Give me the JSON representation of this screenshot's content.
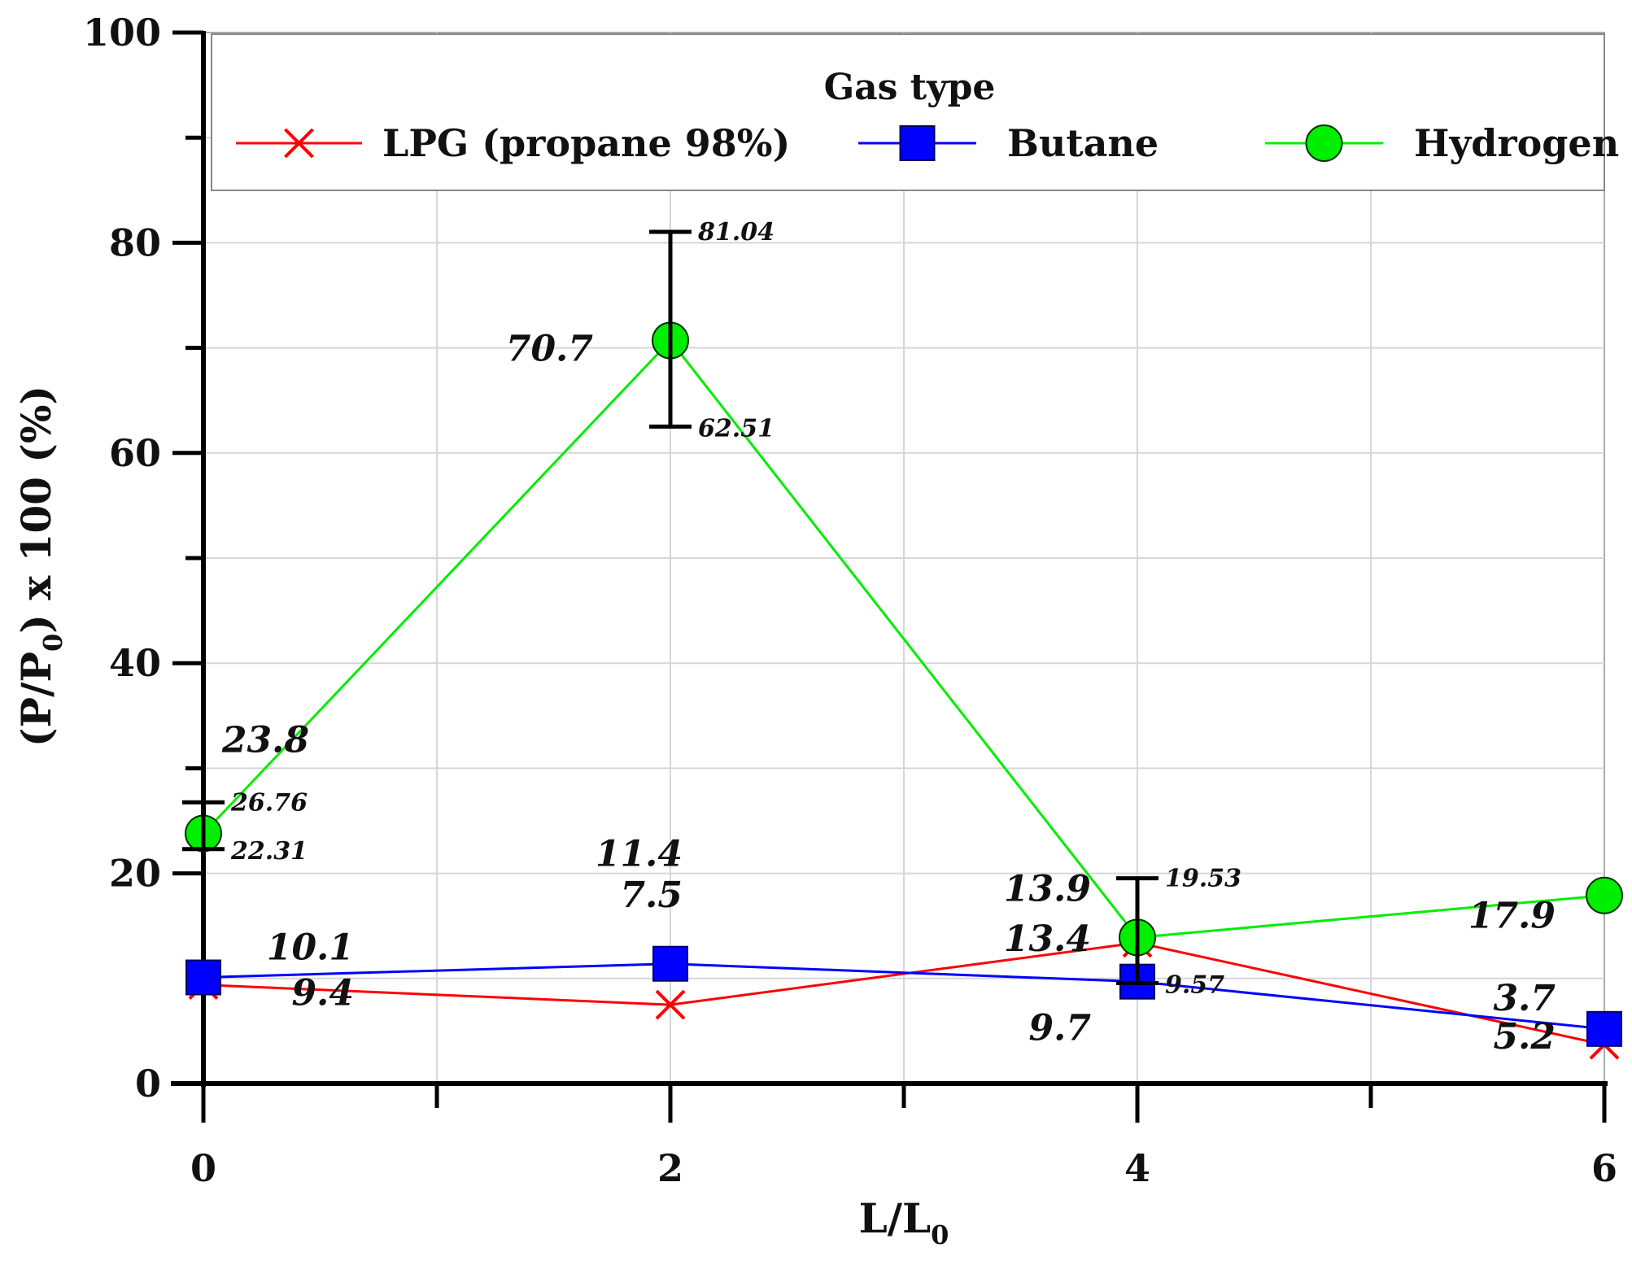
{
  "chart_data": {
    "type": "line",
    "title": "",
    "xlabel": "L/L",
    "xlabel_sub": "0",
    "ylabel": "(P/P",
    "ylabel_sub": "0",
    "ylabel_tail": ") x 100 (%)",
    "xlim": [
      0,
      6
    ],
    "ylim": [
      0,
      100
    ],
    "x_ticks": [
      0,
      2,
      4,
      6
    ],
    "y_ticks": [
      0,
      20,
      40,
      60,
      80,
      100
    ],
    "grid": true,
    "legend": {
      "title": "Gas type",
      "position": "top"
    },
    "series": [
      {
        "name": "LPG (propane 98%)",
        "color": "#ff0000",
        "marker": "x",
        "x": [
          0,
          2,
          4,
          6
        ],
        "values": [
          9.4,
          7.5,
          13.4,
          3.7
        ],
        "labels": [
          "9.4",
          "7.5",
          "13.4",
          "3.7"
        ]
      },
      {
        "name": "Butane",
        "color": "#0000ff",
        "marker": "square",
        "x": [
          0,
          2,
          4,
          6
        ],
        "values": [
          10.1,
          11.4,
          9.7,
          5.2
        ],
        "labels": [
          "10.1",
          "11.4",
          "9.7",
          "5.2"
        ]
      },
      {
        "name": "Hydrogen",
        "color": "#00ee00",
        "marker": "circle",
        "x": [
          0,
          2,
          4,
          6
        ],
        "values": [
          23.8,
          70.7,
          13.9,
          17.9
        ],
        "labels": [
          "23.8",
          "70.7",
          "13.9",
          "17.9"
        ]
      }
    ],
    "error_bars": [
      {
        "x": 0,
        "low": 22.31,
        "high": 26.76,
        "low_label": "22.31",
        "high_label": "26.76"
      },
      {
        "x": 2,
        "low": 62.51,
        "high": 81.04,
        "low_label": "62.51",
        "high_label": "81.04"
      },
      {
        "x": 4,
        "low": 9.57,
        "high": 19.53,
        "low_label": "9.57",
        "high_label": "19.53"
      }
    ]
  }
}
